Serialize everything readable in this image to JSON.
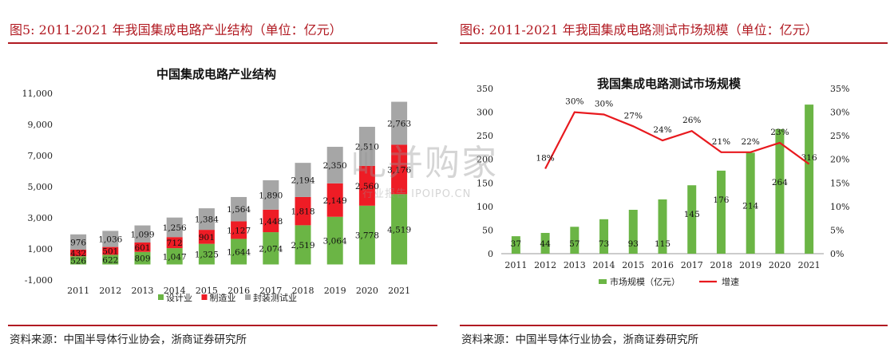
{
  "left_panel": {
    "figure_title": "图5:   2011-2021 年我国集成电路产业结构（单位：亿元）",
    "source": "资料来源：中国半导体行业协会，浙商证券研究所"
  },
  "right_panel": {
    "figure_title": "图6:   2011-2021 年我国集成电路测试市场规模（单位：亿元）",
    "source": "资料来源：中国半导体行业协会，浙商证券研究所"
  },
  "watermark": {
    "main": "乢并购家",
    "sub": "行业报告 IPOIPO.CN"
  },
  "chart_data": [
    {
      "type": "bar",
      "stacked": true,
      "title": "中国集成电路产业结构",
      "categories": [
        "2011",
        "2012",
        "2013",
        "2014",
        "2015",
        "2016",
        "2017",
        "2018",
        "2019",
        "2020",
        "2021"
      ],
      "series": [
        {
          "name": "设计业",
          "color": "#6bb545",
          "values": [
            526,
            622,
            809,
            1047,
            1325,
            1644,
            2074,
            2519,
            3064,
            3778,
            4519
          ],
          "labels": [
            "526",
            "622",
            "809",
            "1,047",
            "1,325",
            "1,644",
            "2,074",
            "2,519",
            "3,064",
            "3,778",
            "4,519"
          ]
        },
        {
          "name": "制造业",
          "color": "#ee1c25",
          "values": [
            432,
            501,
            601,
            712,
            901,
            1127,
            1448,
            1818,
            2149,
            2560,
            3176
          ],
          "labels": [
            "432",
            "501",
            "601",
            "712",
            "901",
            "1,127",
            "1,448",
            "1,818",
            "2,149",
            "2,560",
            "3,176"
          ]
        },
        {
          "name": "封装测试业",
          "color": "#a6a6a6",
          "values": [
            976,
            1036,
            1099,
            1256,
            1384,
            1564,
            1890,
            2194,
            2350,
            2510,
            2763
          ],
          "labels": [
            "976",
            "1,036",
            "1,099",
            "1,256",
            "1,384",
            "1,564",
            "1,890",
            "2,194",
            "2,350",
            "2,510",
            "2,763"
          ]
        }
      ],
      "yticks": [
        "11,000",
        "9,000",
        "7,000",
        "5,000",
        "3,000",
        "1,000",
        "-1,000"
      ],
      "ylim": [
        -1000,
        11000
      ],
      "legend_position": "bottom"
    },
    {
      "type": "bar+line",
      "title": "我国集成电路测试市场规模",
      "categories": [
        "2011",
        "2012",
        "2013",
        "2014",
        "2015",
        "2016",
        "2017",
        "2018",
        "2019",
        "2020",
        "2021"
      ],
      "series": [
        {
          "name": "市场规模（亿元）",
          "type": "bar",
          "axis": "left",
          "color": "#6bb545",
          "values": [
            37,
            44,
            57,
            73,
            93,
            115,
            145,
            176,
            214,
            264,
            316
          ]
        },
        {
          "name": "增速",
          "type": "line",
          "axis": "right",
          "color": "#e8191e",
          "values": [
            null,
            18,
            30,
            30,
            27,
            24,
            26,
            21,
            22,
            23,
            null
          ],
          "points": [
            null,
            18,
            30,
            29.5,
            27,
            24,
            26,
            21.5,
            21.5,
            23.5,
            19
          ],
          "labels": [
            "",
            "18%",
            "30%",
            "30%",
            "27%",
            "24%",
            "26%",
            "21%",
            "22%",
            "23%",
            ""
          ]
        }
      ],
      "yticks_left": [
        "350",
        "300",
        "250",
        "200",
        "150",
        "100",
        "50",
        "0"
      ],
      "yticks_right": [
        "35%",
        "30%",
        "25%",
        "20%",
        "15%",
        "10%",
        "5%",
        "0%"
      ],
      "ylim_left": [
        0,
        350
      ],
      "ylim_right": [
        0,
        35
      ],
      "legend_position": "bottom"
    }
  ]
}
